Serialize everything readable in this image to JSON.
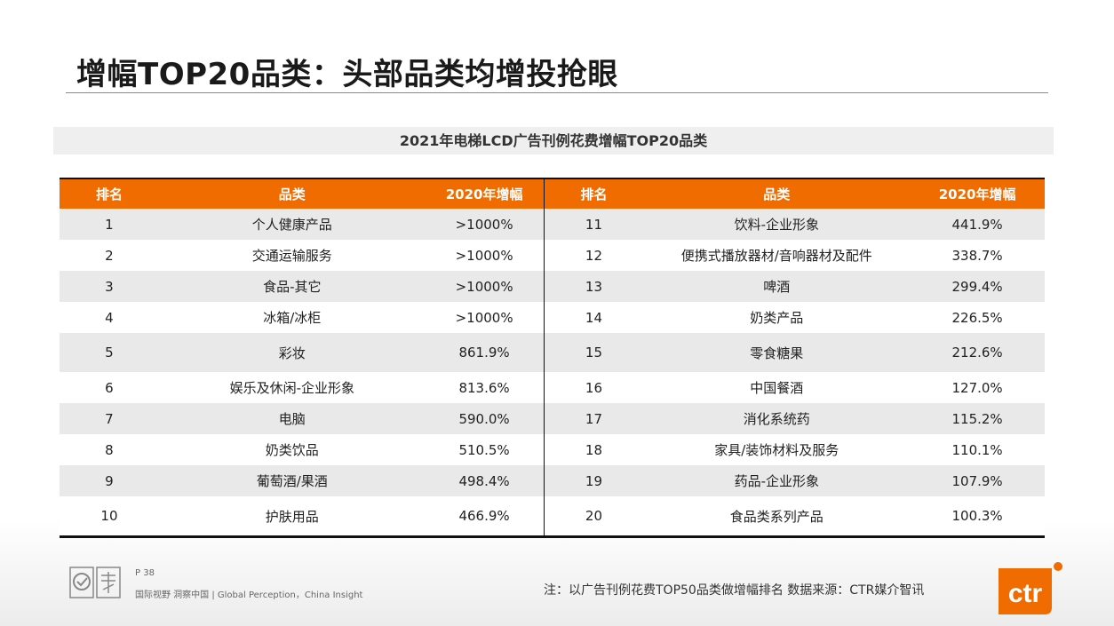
{
  "title": "增幅TOP20品类：头部品类均增投抢眼",
  "subtitle": "2021年电梯LCD广告刊例花费增幅TOP20品类",
  "table": {
    "headers": [
      "排名",
      "品类",
      "2020年增幅",
      "排名",
      "品类",
      "2020年增幅"
    ],
    "left_rows": [
      {
        "rank": "1",
        "category": "个人健康产品",
        "growth": ">1000%"
      },
      {
        "rank": "2",
        "category": "交通运输服务",
        "growth": ">1000%"
      },
      {
        "rank": "3",
        "category": "食品-其它",
        "growth": ">1000%"
      },
      {
        "rank": "4",
        "category": "冰箱/冰柜",
        "growth": ">1000%"
      },
      {
        "rank": "5",
        "category": "彩妆",
        "growth": "861.9%"
      },
      {
        "rank": "6",
        "category": "娱乐及休闲-企业形象",
        "growth": "813.6%"
      },
      {
        "rank": "7",
        "category": "电脑",
        "growth": "590.0%"
      },
      {
        "rank": "8",
        "category": "奶类饮品",
        "growth": "510.5%"
      },
      {
        "rank": "9",
        "category": "葡萄酒/果酒",
        "growth": "498.4%"
      },
      {
        "rank": "10",
        "category": "护肤用品",
        "growth": "466.9%"
      }
    ],
    "right_rows": [
      {
        "rank": "11",
        "category": "饮料-企业形象",
        "growth": "441.9%"
      },
      {
        "rank": "12",
        "category": "便携式播放器材/音响器材及配件",
        "growth": "338.7%"
      },
      {
        "rank": "13",
        "category": "啤酒",
        "growth": "299.4%"
      },
      {
        "rank": "14",
        "category": "奶类产品",
        "growth": "226.5%"
      },
      {
        "rank": "15",
        "category": "零食糖果",
        "growth": "212.6%"
      },
      {
        "rank": "16",
        "category": "中国餐酒",
        "growth": "127.0%"
      },
      {
        "rank": "17",
        "category": "消化系统药",
        "growth": "115.2%"
      },
      {
        "rank": "18",
        "category": "家具/装饰材料及服务",
        "growth": "110.1%"
      },
      {
        "rank": "19",
        "category": "药品-企业形象",
        "growth": "107.9%"
      },
      {
        "rank": "20",
        "category": "食品类系列产品",
        "growth": "100.3%"
      }
    ]
  },
  "footer": {
    "page": "P 38",
    "tagline": "国际视野 洞察中国 | Global Perception，China Insight",
    "note": "注：以广告刊例花费TOP50品类做增幅排名  数据来源：CTR媒介智讯",
    "logo_text": "ctr"
  },
  "colors": {
    "header_orange": "#f06b00",
    "row_gray": "#e9e9e9",
    "logo_orange": "#f06b00"
  }
}
